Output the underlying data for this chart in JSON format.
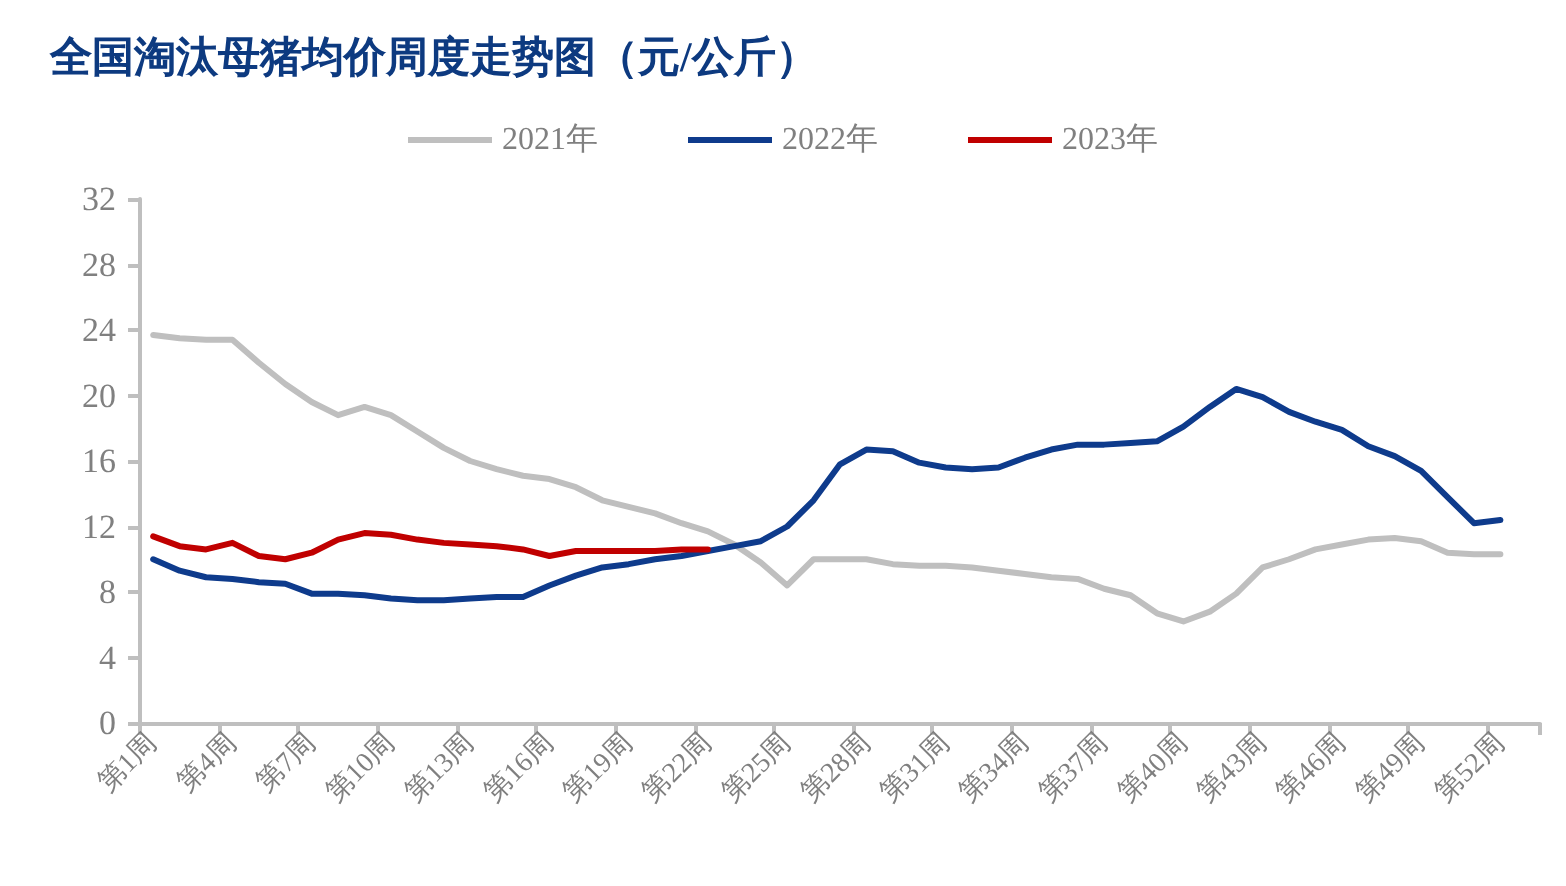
{
  "chart_data": {
    "type": "line",
    "title": "全国淘汰母猪均价周度走势图（元/公斤）",
    "categories": [
      "第1周",
      null,
      null,
      "第4周",
      null,
      null,
      "第7周",
      null,
      null,
      "第10周",
      null,
      null,
      "第13周",
      null,
      null,
      "第16周",
      null,
      null,
      "第19周",
      null,
      null,
      "第22周",
      null,
      null,
      "第25周",
      null,
      null,
      "第28周",
      null,
      null,
      "第31周",
      null,
      null,
      "第34周",
      null,
      null,
      "第37周",
      null,
      null,
      "第40周",
      null,
      null,
      "第43周",
      null,
      null,
      "第46周",
      null,
      null,
      "第49周",
      null,
      null,
      "第52周",
      null
    ],
    "series": [
      {
        "name": "2021年",
        "color": "#bfbfbf",
        "values": [
          23.7,
          23.5,
          23.4,
          23.4,
          22.0,
          20.7,
          19.6,
          18.8,
          19.3,
          18.8,
          17.8,
          16.8,
          16.0,
          15.5,
          15.1,
          14.9,
          14.4,
          13.6,
          13.2,
          12.8,
          12.2,
          11.7,
          10.9,
          9.8,
          8.4,
          10.0,
          10.0,
          10.0,
          9.7,
          9.6,
          9.6,
          9.5,
          9.3,
          9.1,
          8.9,
          8.8,
          8.2,
          7.8,
          6.7,
          6.2,
          6.8,
          7.9,
          9.5,
          10.0,
          10.6,
          10.9,
          11.2,
          11.3,
          11.1,
          10.4,
          10.3,
          10.3,
          null
        ]
      },
      {
        "name": "2022年",
        "color": "#0e3b8c",
        "values": [
          10.0,
          9.3,
          8.9,
          8.8,
          8.6,
          8.5,
          7.9,
          7.9,
          7.8,
          7.6,
          7.5,
          7.5,
          7.6,
          7.7,
          7.7,
          8.4,
          9.0,
          9.5,
          9.7,
          10.0,
          10.2,
          10.5,
          10.8,
          11.1,
          12.0,
          13.6,
          15.8,
          16.7,
          16.6,
          15.9,
          15.6,
          15.5,
          15.6,
          16.2,
          16.7,
          17.0,
          17.0,
          17.1,
          17.2,
          18.1,
          19.3,
          20.4,
          19.9,
          19.0,
          18.4,
          17.9,
          16.9,
          16.3,
          15.4,
          13.8,
          12.2,
          12.4,
          null
        ]
      },
      {
        "name": "2023年",
        "color": "#c00000",
        "values": [
          11.4,
          10.8,
          10.6,
          11.0,
          10.2,
          10.0,
          10.4,
          11.2,
          11.6,
          11.5,
          11.2,
          11.0,
          10.9,
          10.8,
          10.6,
          10.2,
          10.5,
          10.5,
          10.5,
          10.5,
          10.6,
          10.6,
          null,
          null,
          null,
          null,
          null,
          null,
          null,
          null,
          null,
          null,
          null,
          null,
          null,
          null,
          null,
          null,
          null,
          null,
          null,
          null,
          null,
          null,
          null,
          null,
          null,
          null,
          null,
          null,
          null,
          null,
          null
        ]
      }
    ],
    "ylim": [
      0,
      32
    ],
    "yticks": [
      0,
      4,
      8,
      12,
      16,
      20,
      24,
      28,
      32
    ],
    "grid": false,
    "legend": "top",
    "marker": "none",
    "line_style": "solid"
  }
}
